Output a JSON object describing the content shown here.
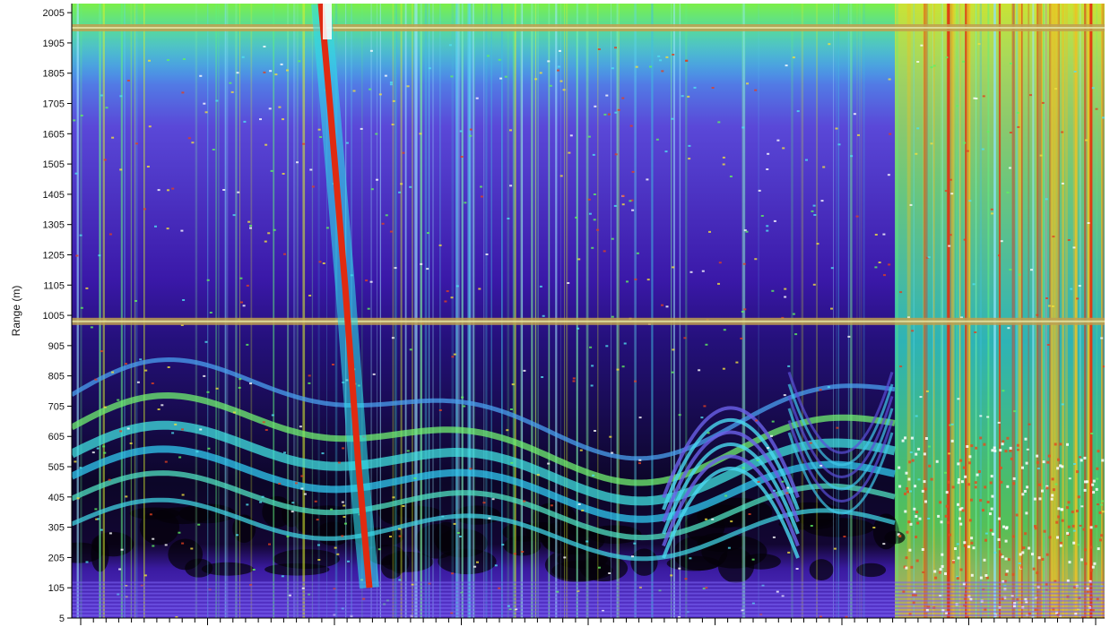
{
  "chart_data": {
    "type": "heatmap",
    "title": "",
    "xlabel": "",
    "ylabel": "Range (m)",
    "ylim": [
      5,
      2035
    ],
    "y_ticks": [
      5,
      105,
      205,
      305,
      405,
      505,
      605,
      705,
      805,
      905,
      1005,
      1105,
      1205,
      1305,
      1405,
      1505,
      1605,
      1705,
      1805,
      1905,
      2005
    ],
    "x_tick_count": 80,
    "grid": false,
    "legend": "none",
    "colormap": [
      "#04020a",
      "#1a0a4a",
      "#3b1aa0",
      "#6a3bd8",
      "#5aa8f0",
      "#2fe0e0",
      "#5ff070",
      "#d8f028",
      "#f0a020",
      "#e02010"
    ],
    "features": {
      "horizontal_bands_range_m": [
        985,
        1955
      ],
      "deep_scattering_layer_range_m": [
        300,
        650
      ],
      "plume_trail": "descending red streak from top to ~105 m",
      "surface_noise_band_range_m": [
        5,
        135
      ]
    }
  }
}
